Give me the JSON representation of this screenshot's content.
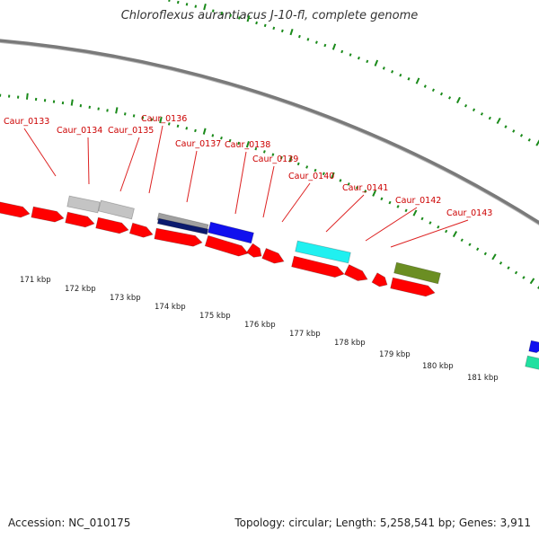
{
  "title": "Chloroflexus aurantiacus J-10-fl, complete genome",
  "footer": {
    "accession": "Accession: NC_010175",
    "summary": "Topology: circular; Length: 5,258,541 bp; Genes: 3,911"
  },
  "colors": {
    "cds_red": "#ff0000",
    "backbone": "#8a8a8a",
    "tick_green": "#1a8a1a",
    "label_red": "#cc0000",
    "gray_feature": "#c4c4c4",
    "navy_feature": "#0b1a6e",
    "blue_feature": "#1010ee",
    "cyan_feature": "#20f0f0",
    "olive_feature": "#6b8e23",
    "teal_feature": "#20e0a0"
  },
  "scale_labels": [
    "171 kbp",
    "172 kbp",
    "173 kbp",
    "174 kbp",
    "175 kbp",
    "176 kbp",
    "177 kbp",
    "178 kbp",
    "179 kbp",
    "180 kbp",
    "181 kbp"
  ],
  "gene_labels": [
    "Caur_0133",
    "Caur_0134",
    "Caur_0135",
    "Caur_0136",
    "Caur_0137",
    "Caur_0138",
    "Caur_0139",
    "Caur_0140",
    "Caur_0141",
    "Caur_0142",
    "Caur_0143"
  ]
}
